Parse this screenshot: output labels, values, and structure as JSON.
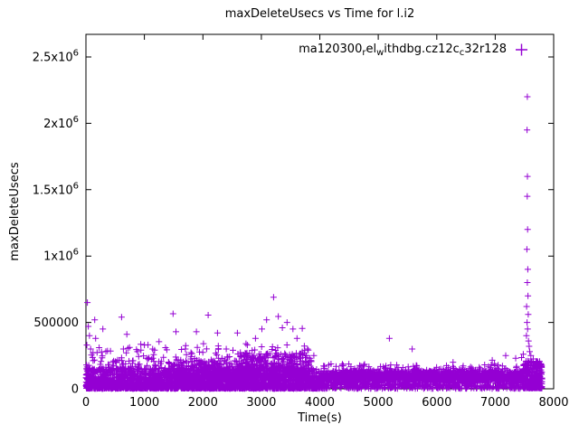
{
  "page": {
    "background": "#ffffff",
    "axis_color": "#000000"
  },
  "chart_data": {
    "type": "scatter",
    "title": "maxDeleteUsecs vs Time for l.i2",
    "xlabel": "Time(s)",
    "ylabel": "maxDeleteUsecs",
    "xlim": [
      0,
      8000
    ],
    "ylim": [
      0,
      2670000
    ],
    "grid": false,
    "legend_position": "top-center-inside",
    "xticks": [
      {
        "v": 0,
        "label": "0"
      },
      {
        "v": 1000,
        "label": "1000"
      },
      {
        "v": 2000,
        "label": "2000"
      },
      {
        "v": 3000,
        "label": "3000"
      },
      {
        "v": 4000,
        "label": "4000"
      },
      {
        "v": 5000,
        "label": "5000"
      },
      {
        "v": 6000,
        "label": "6000"
      },
      {
        "v": 7000,
        "label": "7000"
      },
      {
        "v": 8000,
        "label": "8000"
      }
    ],
    "yticks": [
      {
        "v": 0,
        "label": "0",
        "sup": ""
      },
      {
        "v": 500000,
        "label": "500000",
        "sup": ""
      },
      {
        "v": 1000000,
        "label": "1x10",
        "sup": "6"
      },
      {
        "v": 1500000,
        "label": "1.5x10",
        "sup": "6"
      },
      {
        "v": 2000000,
        "label": "2x10",
        "sup": "6"
      },
      {
        "v": 2500000,
        "label": "2.5x10",
        "sup": "6"
      }
    ],
    "legend": {
      "series_name_raw": "ma120300_rel_withdbg.cz12c_c32r128",
      "segments": [
        {
          "text": "ma120300",
          "sub": false
        },
        {
          "text": "r",
          "sub": true
        },
        {
          "text": "el",
          "sub": false
        },
        {
          "text": "w",
          "sub": true
        },
        {
          "text": "ithdbg.cz12c",
          "sub": false
        },
        {
          "text": "c",
          "sub": true
        },
        {
          "text": "32r128",
          "sub": false
        }
      ]
    },
    "marker": {
      "shape": "plus",
      "color": "#9400d3",
      "size": 7
    },
    "seed": 7,
    "bands": [
      {
        "x0": 0,
        "x1": 3950,
        "count": 2400,
        "ymin": 3000,
        "ymax": 150000,
        "skew": 1.8
      },
      {
        "x0": 1400,
        "x1": 2700,
        "count": 450,
        "ymin": 80000,
        "ymax": 220000,
        "skew": 2.2
      },
      {
        "x0": 2650,
        "x1": 3800,
        "count": 450,
        "ymin": 90000,
        "ymax": 270000,
        "skew": 2.2
      },
      {
        "x0": 0,
        "x1": 3900,
        "count": 280,
        "ymin": 150000,
        "ymax": 340000,
        "skew": 3.2
      },
      {
        "x0": 3980,
        "x1": 7480,
        "count": 1600,
        "ymin": 65000,
        "ymax": 135000,
        "skew": 1.4
      },
      {
        "x0": 3980,
        "x1": 7800,
        "count": 650,
        "ymin": 1000,
        "ymax": 65000,
        "skew": 1.2
      },
      {
        "x0": 7480,
        "x1": 7800,
        "count": 320,
        "ymin": 5000,
        "ymax": 210000,
        "skew": 1.6
      },
      {
        "x0": 0,
        "x1": 3950,
        "count": 500,
        "ymin": 500,
        "ymax": 25000,
        "skew": 1.0
      },
      {
        "x0": 3850,
        "x1": 3995,
        "count": 110,
        "ymin": 2000,
        "ymax": 70000,
        "skew": 1.2
      },
      {
        "x0": 4000,
        "x1": 7400,
        "count": 110,
        "ymin": 135000,
        "ymax": 190000,
        "skew": 2.0
      }
    ],
    "outliers": [
      [
        25,
        650000
      ],
      [
        40,
        470000
      ],
      [
        60,
        400000
      ],
      [
        15,
        330000
      ],
      [
        80,
        300000
      ],
      [
        95,
        255000
      ],
      [
        150,
        520000
      ],
      [
        165,
        380000
      ],
      [
        290,
        450000
      ],
      [
        420,
        285000
      ],
      [
        610,
        540000
      ],
      [
        640,
        300000
      ],
      [
        700,
        410000
      ],
      [
        880,
        280000
      ],
      [
        1000,
        330000
      ],
      [
        1140,
        300000
      ],
      [
        1250,
        355000
      ],
      [
        1360,
        310000
      ],
      [
        1490,
        565000
      ],
      [
        1540,
        430000
      ],
      [
        1700,
        300000
      ],
      [
        1890,
        430000
      ],
      [
        2010,
        340000
      ],
      [
        2090,
        555000
      ],
      [
        2250,
        420000
      ],
      [
        2400,
        300000
      ],
      [
        2590,
        420000
      ],
      [
        2760,
        330000
      ],
      [
        2900,
        380000
      ],
      [
        3010,
        450000
      ],
      [
        3090,
        520000
      ],
      [
        3210,
        690000
      ],
      [
        3290,
        545000
      ],
      [
        3360,
        460000
      ],
      [
        3440,
        500000
      ],
      [
        3540,
        450000
      ],
      [
        3610,
        380000
      ],
      [
        3700,
        455000
      ],
      [
        3790,
        300000
      ],
      [
        4380,
        175000
      ],
      [
        5190,
        380000
      ],
      [
        5580,
        300000
      ],
      [
        6280,
        200000
      ],
      [
        6950,
        215000
      ],
      [
        7180,
        250000
      ],
      [
        7350,
        230000
      ],
      [
        7550,
        2200000
      ],
      [
        7545,
        1950000
      ],
      [
        7552,
        1600000
      ],
      [
        7548,
        1450000
      ],
      [
        7555,
        1200000
      ],
      [
        7542,
        1050000
      ],
      [
        7558,
        900000
      ],
      [
        7550,
        800000
      ],
      [
        7560,
        700000
      ],
      [
        7538,
        620000
      ],
      [
        7565,
        560000
      ],
      [
        7545,
        500000
      ],
      [
        7555,
        450000
      ],
      [
        7535,
        400000
      ],
      [
        7570,
        360000
      ],
      [
        7580,
        320000
      ],
      [
        7590,
        280000
      ],
      [
        7610,
        250000
      ],
      [
        7650,
        225000
      ],
      [
        7700,
        205000
      ],
      [
        7480,
        260000
      ],
      [
        7450,
        235000
      ]
    ]
  }
}
